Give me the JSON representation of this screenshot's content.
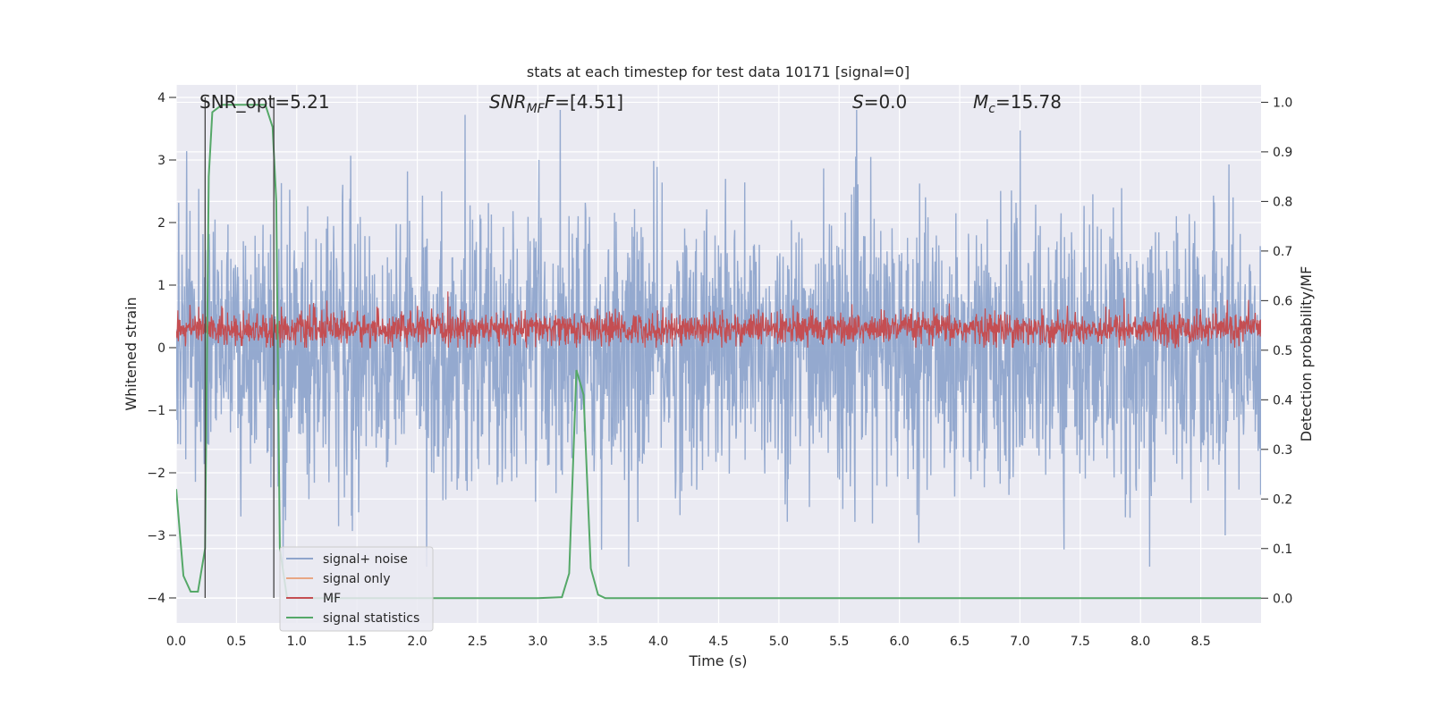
{
  "chart_data": {
    "type": "line",
    "title": "stats at each timestep for test data 10171 [signal=0]",
    "xlabel": "Time (s)",
    "ylabel": "Whitened strain",
    "ylabel_right": "Detection probability/MF",
    "xlim": [
      0.0,
      9.0
    ],
    "ylim": [
      -4.4,
      4.2
    ],
    "ylim_right": [
      -0.05,
      1.035
    ],
    "x_ticks": [
      "0.0",
      "0.5",
      "1.0",
      "1.5",
      "2.0",
      "2.5",
      "3.0",
      "3.5",
      "4.0",
      "4.5",
      "5.0",
      "5.5",
      "6.0",
      "6.5",
      "7.0",
      "7.5",
      "8.0",
      "8.5"
    ],
    "x_tick_values": [
      0.0,
      0.5,
      1.0,
      1.5,
      2.0,
      2.5,
      3.0,
      3.5,
      4.0,
      4.5,
      5.0,
      5.5,
      6.0,
      6.5,
      7.0,
      7.5,
      8.0,
      8.5
    ],
    "y_ticks": [
      "−4",
      "−3",
      "−2",
      "−1",
      "0",
      "1",
      "2",
      "3",
      "4"
    ],
    "y_tick_values": [
      -4,
      -3,
      -2,
      -1,
      0,
      1,
      2,
      3,
      4
    ],
    "y_right_ticks": [
      "0.0",
      "0.1",
      "0.2",
      "0.3",
      "0.4",
      "0.5",
      "0.6",
      "0.7",
      "0.8",
      "0.9",
      "1.0"
    ],
    "y_right_tick_values": [
      0.0,
      0.1,
      0.2,
      0.3,
      0.4,
      0.5,
      0.6,
      0.7,
      0.8,
      0.9,
      1.0
    ],
    "grid": true,
    "annotations": {
      "snr_opt": "SNR_opt=5.21",
      "snr_mf_main": "SNR",
      "snr_mf_sub": "MF",
      "snr_mf_value": "=[4.51]",
      "s_main": "S",
      "s_value": "=0.0",
      "mc_main": "M",
      "mc_sub": "c",
      "mc_value": "=15.78"
    },
    "vertical_markers": [
      0.24,
      0.81
    ],
    "legend": {
      "position": "lower-left",
      "entries": [
        "signal+ noise",
        "signal only",
        "MF",
        "signal statistics"
      ]
    },
    "series": [
      {
        "name": "signal+ noise",
        "axis": "left",
        "color": "#8fa5cc",
        "description": "whitened noisy strain, dense oscillation roughly between -3.5 and 3.8",
        "x_range": [
          0.0,
          9.0
        ],
        "envelope": [
          -3.5,
          3.8
        ]
      },
      {
        "name": "signal only",
        "axis": "left",
        "color": "#e8a684",
        "values": []
      },
      {
        "name": "MF",
        "axis": "left",
        "color": "#c44e52",
        "description": "matched filter output, dense band roughly between 0 and 0.6",
        "x_range": [
          0.0,
          9.0
        ],
        "envelope": [
          0.0,
          1.0
        ]
      },
      {
        "name": "signal statistics",
        "axis": "right",
        "color": "#55a868",
        "x": [
          0.0,
          0.06,
          0.12,
          0.18,
          0.24,
          0.27,
          0.3,
          0.38,
          0.5,
          0.62,
          0.74,
          0.8,
          0.83,
          0.86,
          0.92,
          1.0,
          1.5,
          2.0,
          2.5,
          3.0,
          3.2,
          3.26,
          3.32,
          3.38,
          3.44,
          3.5,
          3.56,
          3.7,
          4.0,
          5.0,
          6.0,
          7.0,
          8.0,
          9.0
        ],
        "values": [
          0.22,
          0.045,
          0.013,
          0.013,
          0.1,
          0.85,
          0.98,
          0.995,
          0.995,
          0.995,
          0.995,
          0.95,
          0.8,
          0.1,
          0.0,
          0.0,
          0.0,
          0.0,
          0.0,
          0.0,
          0.002,
          0.05,
          0.46,
          0.41,
          0.06,
          0.007,
          0.0,
          0.0,
          0.0,
          0.0,
          0.0,
          0.0,
          0.0,
          0.0
        ]
      }
    ]
  }
}
